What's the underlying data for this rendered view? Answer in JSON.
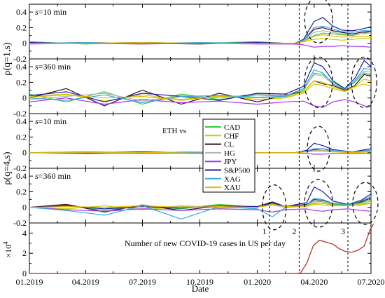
{
  "chart_data": {
    "type": "line",
    "x_ticks": [
      "01.2019",
      "04.2019",
      "07.2019",
      "10.2019",
      "01.2020",
      "04.2020",
      "07.2020"
    ],
    "xlabel": "Date",
    "ylabel_top": "ρ(q=1,s)",
    "ylabel_bottom": "ρ(q=4,s)",
    "legend_title": "ETH vs",
    "event_markers": [
      "1",
      "2",
      "3"
    ],
    "event_dates": [
      "2020-01-20",
      "2020-03-08",
      "2020-05-25"
    ],
    "colors": {
      "CAD": "#33cc33",
      "CHF": "#cccc00",
      "CL": "#3a0f2a",
      "HG": "#b3b3b3",
      "JPY": "#aa33ee",
      "S&P500": "#1a1aa6",
      "XAG": "#33aaee",
      "XAU": "#e6b800",
      "covid": "#b3241b"
    },
    "panels": [
      {
        "label_prefix": "s",
        "label_suffix": "=10 min",
        "ylim": [
          -0.2,
          0.5
        ],
        "yticks": [
          "0.4",
          "0.2",
          "0",
          "-0.2"
        ],
        "x": [
          "2019-01-01",
          "2019-04-01",
          "2019-07-01",
          "2019-10-01",
          "2020-01-01",
          "2020-02-15",
          "2020-03-01",
          "2020-03-15",
          "2020-04-01",
          "2020-04-15",
          "2020-05-01",
          "2020-05-15",
          "2020-06-01",
          "2020-06-15",
          "2020-07-01"
        ],
        "series": [
          {
            "name": "CAD",
            "values": [
              0.02,
              -0.01,
              0.01,
              0.0,
              0.02,
              0.0,
              0.0,
              0.03,
              0.1,
              0.13,
              0.12,
              0.11,
              0.1,
              0.12,
              0.15
            ]
          },
          {
            "name": "CHF",
            "values": [
              0.01,
              0.0,
              -0.01,
              0.01,
              0.0,
              -0.01,
              0.0,
              0.02,
              0.05,
              0.06,
              0.05,
              0.04,
              0.05,
              0.06,
              0.06
            ]
          },
          {
            "name": "CL",
            "values": [
              0.0,
              0.01,
              0.0,
              -0.01,
              0.01,
              0.0,
              -0.01,
              0.04,
              0.18,
              0.2,
              0.16,
              0.14,
              0.12,
              0.14,
              0.15
            ]
          },
          {
            "name": "HG",
            "values": [
              0.01,
              0.0,
              0.0,
              0.0,
              0.01,
              0.0,
              0.0,
              0.03,
              0.14,
              0.16,
              0.14,
              0.12,
              0.11,
              0.12,
              0.13
            ]
          },
          {
            "name": "JPY",
            "values": [
              -0.01,
              0.0,
              -0.01,
              0.0,
              -0.01,
              -0.01,
              -0.01,
              -0.02,
              -0.05,
              -0.04,
              -0.04,
              -0.03,
              -0.04,
              -0.04,
              -0.05
            ]
          },
          {
            "name": "S&P500",
            "values": [
              0.01,
              0.0,
              0.01,
              0.0,
              0.01,
              0.0,
              0.0,
              0.05,
              0.28,
              0.33,
              0.22,
              0.17,
              0.16,
              0.18,
              0.21
            ]
          },
          {
            "name": "XAG",
            "values": [
              0.0,
              0.01,
              0.0,
              0.01,
              0.0,
              0.0,
              0.0,
              0.04,
              0.2,
              0.22,
              0.18,
              0.15,
              0.14,
              0.16,
              0.16
            ]
          },
          {
            "name": "XAU",
            "values": [
              0.0,
              0.0,
              0.01,
              0.0,
              0.0,
              0.0,
              0.0,
              0.02,
              0.09,
              0.11,
              0.09,
              0.08,
              0.08,
              0.09,
              0.08
            ]
          }
        ]
      },
      {
        "label_prefix": "s",
        "label_suffix": "=360 min",
        "ylim": [
          -0.2,
          0.5
        ],
        "yticks": [
          "0.4",
          "0.2",
          "0",
          "-0.2"
        ],
        "x": [
          "2019-01-01",
          "2019-03-01",
          "2019-05-01",
          "2019-07-01",
          "2019-09-01",
          "2019-11-01",
          "2020-01-01",
          "2020-02-15",
          "2020-03-15",
          "2020-04-01",
          "2020-04-15",
          "2020-05-01",
          "2020-05-20",
          "2020-06-05",
          "2020-06-20",
          "2020-07-01"
        ],
        "series": [
          {
            "name": "CAD",
            "values": [
              0.05,
              -0.05,
              0.08,
              -0.08,
              0.05,
              -0.02,
              0.04,
              0.02,
              0.1,
              0.32,
              0.3,
              0.2,
              0.12,
              0.2,
              0.32,
              0.3
            ]
          },
          {
            "name": "CHF",
            "values": [
              0.02,
              0.05,
              -0.04,
              0.04,
              -0.02,
              0.03,
              -0.02,
              0.0,
              0.06,
              0.18,
              0.16,
              0.12,
              0.08,
              0.14,
              0.18,
              0.15
            ]
          },
          {
            "name": "CL",
            "values": [
              0.0,
              0.12,
              -0.1,
              0.1,
              -0.08,
              0.06,
              -0.05,
              0.04,
              0.08,
              0.22,
              0.18,
              0.16,
              0.1,
              0.16,
              0.3,
              0.28
            ]
          },
          {
            "name": "HG",
            "values": [
              -0.02,
              0.02,
              0.06,
              -0.04,
              0.03,
              0.0,
              0.05,
              0.03,
              0.12,
              0.3,
              0.28,
              0.18,
              0.11,
              0.22,
              0.34,
              0.33
            ]
          },
          {
            "name": "JPY",
            "values": [
              -0.05,
              0.0,
              -0.08,
              -0.02,
              -0.06,
              -0.04,
              -0.08,
              -0.05,
              -0.04,
              -0.1,
              -0.12,
              -0.05,
              -0.02,
              -0.05,
              -0.1,
              -0.12
            ]
          },
          {
            "name": "S&P500",
            "values": [
              0.03,
              0.08,
              -0.05,
              0.06,
              0.02,
              -0.03,
              0.06,
              0.05,
              0.15,
              0.45,
              0.4,
              0.22,
              0.12,
              0.25,
              0.48,
              0.4
            ]
          },
          {
            "name": "XAG",
            "values": [
              0.0,
              -0.03,
              0.04,
              -0.06,
              0.02,
              0.03,
              0.01,
              0.02,
              0.12,
              0.36,
              0.32,
              0.18,
              0.11,
              0.22,
              0.38,
              0.36
            ]
          },
          {
            "name": "XAU",
            "values": [
              0.01,
              0.04,
              0.0,
              0.02,
              -0.03,
              0.02,
              0.0,
              0.01,
              0.08,
              0.22,
              0.2,
              0.14,
              0.09,
              0.15,
              0.24,
              0.22
            ]
          }
        ]
      },
      {
        "label_prefix": "s",
        "label_suffix": "=10 min",
        "ylim": [
          -0.2,
          0.5
        ],
        "yticks": [
          "0.4",
          "0.2",
          "0",
          "-0.2"
        ],
        "x": [
          "2019-01-01",
          "2019-04-01",
          "2019-07-01",
          "2019-10-01",
          "2020-01-01",
          "2020-03-01",
          "2020-03-20",
          "2020-04-01",
          "2020-04-15",
          "2020-05-01",
          "2020-06-01",
          "2020-07-01"
        ],
        "series": [
          {
            "name": "CAD",
            "values": [
              0.0,
              0.01,
              0.0,
              -0.01,
              0.0,
              0.0,
              0.02,
              0.03,
              0.03,
              0.02,
              0.01,
              0.02
            ]
          },
          {
            "name": "CHF",
            "values": [
              0.0,
              0.0,
              0.01,
              0.0,
              0.0,
              0.0,
              0.01,
              0.02,
              0.02,
              0.01,
              0.0,
              0.01
            ]
          },
          {
            "name": "CL",
            "values": [
              0.0,
              -0.01,
              0.0,
              0.01,
              0.0,
              0.0,
              0.02,
              0.04,
              0.05,
              0.02,
              0.01,
              0.03
            ]
          },
          {
            "name": "HG",
            "values": [
              0.0,
              0.0,
              0.0,
              0.0,
              0.0,
              0.0,
              0.01,
              0.03,
              0.03,
              0.02,
              0.01,
              0.02
            ]
          },
          {
            "name": "JPY",
            "values": [
              0.0,
              0.0,
              -0.01,
              0.0,
              0.0,
              0.0,
              -0.01,
              -0.02,
              -0.02,
              -0.01,
              -0.01,
              -0.01
            ]
          },
          {
            "name": "S&P500",
            "values": [
              0.0,
              0.0,
              0.01,
              0.0,
              0.0,
              0.0,
              0.03,
              0.12,
              0.09,
              0.04,
              0.01,
              0.05
            ]
          },
          {
            "name": "XAG",
            "values": [
              0.0,
              0.01,
              0.0,
              0.0,
              0.0,
              0.0,
              0.02,
              0.05,
              0.05,
              0.03,
              0.01,
              0.03
            ]
          },
          {
            "name": "XAU",
            "values": [
              0.0,
              0.0,
              0.0,
              0.01,
              0.0,
              0.0,
              0.01,
              0.02,
              0.02,
              0.01,
              0.0,
              0.01
            ]
          }
        ]
      },
      {
        "label_prefix": "s",
        "label_suffix": "=360 min",
        "ylim": [
          -0.2,
          0.5
        ],
        "yticks": [
          "0.4",
          "0.2",
          "0",
          "-0.2"
        ],
        "x": [
          "2019-01-01",
          "2019-03-01",
          "2019-05-01",
          "2019-07-01",
          "2019-09-01",
          "2019-11-01",
          "2020-01-01",
          "2020-01-25",
          "2020-02-15",
          "2020-03-20",
          "2020-04-01",
          "2020-04-15",
          "2020-05-01",
          "2020-05-25",
          "2020-06-15",
          "2020-07-01"
        ],
        "series": [
          {
            "name": "CAD",
            "values": [
              0.0,
              0.03,
              -0.04,
              0.02,
              -0.02,
              0.04,
              0.0,
              0.05,
              0.01,
              0.03,
              0.08,
              0.07,
              0.04,
              0.03,
              0.06,
              0.1
            ]
          },
          {
            "name": "CHF",
            "values": [
              0.0,
              -0.02,
              0.02,
              -0.03,
              0.01,
              -0.01,
              0.0,
              0.03,
              0.0,
              0.01,
              0.04,
              0.03,
              0.02,
              0.02,
              0.03,
              0.05
            ]
          },
          {
            "name": "CL",
            "values": [
              0.0,
              0.04,
              -0.06,
              0.03,
              -0.04,
              0.02,
              0.0,
              0.06,
              0.01,
              0.04,
              0.1,
              0.09,
              0.05,
              0.04,
              0.07,
              0.12
            ]
          },
          {
            "name": "HG",
            "values": [
              0.0,
              0.01,
              0.0,
              -0.02,
              0.02,
              0.0,
              0.01,
              0.03,
              0.0,
              0.02,
              0.06,
              0.05,
              0.03,
              0.02,
              0.05,
              0.08
            ]
          },
          {
            "name": "JPY",
            "values": [
              0.0,
              -0.03,
              -0.05,
              -0.02,
              -0.04,
              -0.02,
              -0.03,
              -0.06,
              -0.03,
              -0.02,
              -0.04,
              -0.05,
              -0.03,
              -0.02,
              -0.04,
              -0.05
            ]
          },
          {
            "name": "S&P500",
            "values": [
              0.0,
              0.02,
              -0.02,
              0.01,
              -0.01,
              0.02,
              0.01,
              0.07,
              0.01,
              0.06,
              0.26,
              0.2,
              0.08,
              0.04,
              0.09,
              0.17
            ]
          },
          {
            "name": "XAG",
            "values": [
              0.0,
              -0.04,
              -0.1,
              0.02,
              -0.15,
              0.01,
              -0.02,
              -0.12,
              0.0,
              0.03,
              0.12,
              0.1,
              0.05,
              0.04,
              0.08,
              0.14
            ]
          },
          {
            "name": "XAU",
            "values": [
              0.0,
              0.01,
              0.0,
              0.02,
              0.0,
              0.01,
              0.0,
              0.04,
              0.01,
              0.02,
              0.05,
              0.05,
              0.03,
              0.02,
              0.04,
              0.06
            ]
          }
        ]
      }
    ],
    "covid_panel": {
      "ylabel_prefix": "×10",
      "ylabel_exponent": "4",
      "ylim": [
        0,
        5
      ],
      "yticks": [
        "4",
        "2",
        "0"
      ],
      "annotation": "Number of new COVID-19 cases in US per day",
      "x": [
        "2019-01-01",
        "2020-03-01",
        "2020-03-10",
        "2020-03-20",
        "2020-03-31",
        "2020-04-10",
        "2020-04-20",
        "2020-05-01",
        "2020-05-10",
        "2020-05-20",
        "2020-05-31",
        "2020-06-10",
        "2020-06-20",
        "2020-06-30",
        "2020-07-05"
      ],
      "values": [
        0,
        0,
        0.05,
        1.0,
        2.8,
        3.3,
        3.1,
        2.9,
        2.5,
        2.2,
        2.1,
        2.3,
        2.7,
        4.4,
        4.9
      ]
    }
  },
  "legend": {
    "items": [
      "CAD",
      "CHF",
      "CL",
      "HG",
      "JPY",
      "S&P500",
      "XAG",
      "XAU"
    ]
  }
}
